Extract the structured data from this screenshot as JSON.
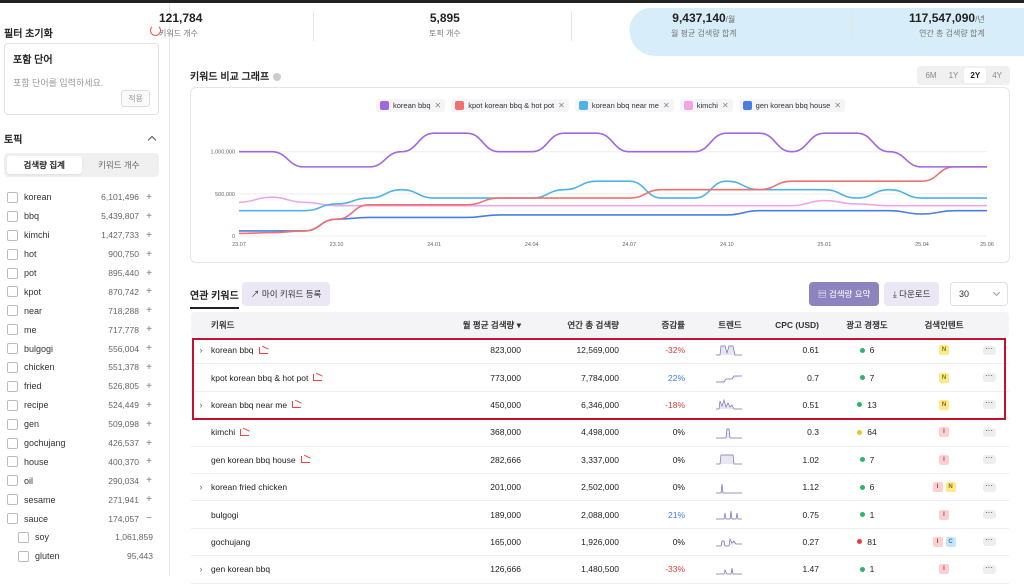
{
  "sidebar": {
    "title": "필터 초기화",
    "include": {
      "title": "포함 단어",
      "placeholder": "포함 단어를 입력하세요.",
      "apply": "적용"
    },
    "topic": {
      "title": "토픽",
      "tabs": [
        {
          "label": "검색량 집계",
          "active": true
        },
        {
          "label": "키워드 개수",
          "active": false
        }
      ],
      "items": [
        {
          "name": "korean",
          "value": "6,101,496",
          "action": "+"
        },
        {
          "name": "bbq",
          "value": "5,439,807",
          "action": "+"
        },
        {
          "name": "kimchi",
          "value": "1,427,733",
          "action": "+"
        },
        {
          "name": "hot",
          "value": "900,750",
          "action": "+"
        },
        {
          "name": "pot",
          "value": "895,440",
          "action": "+"
        },
        {
          "name": "kpot",
          "value": "870,742",
          "action": "+"
        },
        {
          "name": "near",
          "value": "718,288",
          "action": "+"
        },
        {
          "name": "me",
          "value": "717,778",
          "action": "+"
        },
        {
          "name": "bulgogi",
          "value": "556,004",
          "action": "+"
        },
        {
          "name": "chicken",
          "value": "551,378",
          "action": "+"
        },
        {
          "name": "fried",
          "value": "526,805",
          "action": "+"
        },
        {
          "name": "recipe",
          "value": "524,449",
          "action": "+"
        },
        {
          "name": "gen",
          "value": "509,098",
          "action": "+"
        },
        {
          "name": "gochujang",
          "value": "426,537",
          "action": "+"
        },
        {
          "name": "house",
          "value": "400,370",
          "action": "+"
        },
        {
          "name": "oil",
          "value": "290,034",
          "action": "+"
        },
        {
          "name": "sesame",
          "value": "271,941",
          "action": "+"
        },
        {
          "name": "sauce",
          "value": "174,057",
          "action": "−"
        }
      ],
      "subitems": [
        {
          "name": "soy",
          "value": "1,061,859"
        },
        {
          "name": "gluten",
          "value": "95,443"
        }
      ]
    }
  },
  "stats": [
    {
      "value": "121,784",
      "unit": "",
      "label": "키워드 개수"
    },
    {
      "value": "5,895",
      "unit": "",
      "label": "토픽 개수"
    },
    {
      "value": "9,437,140",
      "unit": "/월",
      "label": "월 평균 검색량 합계"
    },
    {
      "value": "117,547,090",
      "unit": "/년",
      "label": "연간 총 검색량 합계"
    }
  ],
  "graph": {
    "title": "키워드 비교 그래프",
    "periods": [
      {
        "label": "6M",
        "active": false
      },
      {
        "label": "1Y",
        "active": false
      },
      {
        "label": "2Y",
        "active": true
      },
      {
        "label": "4Y",
        "active": false
      }
    ]
  },
  "chart_data": {
    "type": "line",
    "x": [
      "23.07",
      "23.08",
      "23.09",
      "23.10",
      "23.11",
      "23.12",
      "24.01",
      "24.02",
      "24.03",
      "24.04",
      "24.05",
      "24.06",
      "24.07",
      "24.08",
      "24.09",
      "24.10",
      "24.11",
      "24.12",
      "25.01",
      "25.02",
      "25.03",
      "25.04",
      "25.05",
      "25.06"
    ],
    "xticks": [
      "23.07",
      "23.10",
      "24.01",
      "24.04",
      "24.07",
      "24.10",
      "25.01",
      "25.04",
      "25.06"
    ],
    "yticks": [
      "0",
      "500,000",
      "1,000,000"
    ],
    "ylim": [
      0,
      1400000
    ],
    "grid": true,
    "series": [
      {
        "name": "korean bbq",
        "color": "#a267e0",
        "values": [
          1000000,
          1000000,
          820000,
          820000,
          820000,
          1000000,
          1220000,
          1220000,
          1000000,
          1000000,
          1220000,
          1220000,
          1000000,
          1000000,
          1000000,
          1220000,
          1220000,
          1000000,
          1220000,
          1220000,
          1000000,
          820000,
          820000,
          820000
        ]
      },
      {
        "name": "kpot korean bbq & hot pot",
        "color": "#f07070",
        "values": [
          30000,
          40000,
          60000,
          200000,
          370000,
          370000,
          370000,
          370000,
          450000,
          450000,
          450000,
          450000,
          450000,
          550000,
          550000,
          550000,
          550000,
          650000,
          650000,
          650000,
          650000,
          650000,
          820000,
          820000
        ]
      },
      {
        "name": "korean bbq near me",
        "color": "#4fb3e8",
        "values": [
          300000,
          300000,
          300000,
          380000,
          450000,
          550000,
          450000,
          450000,
          450000,
          450000,
          550000,
          650000,
          650000,
          450000,
          450000,
          650000,
          550000,
          550000,
          550000,
          450000,
          550000,
          450000,
          450000,
          450000
        ]
      },
      {
        "name": "kimchi",
        "color": "#f0a5e6",
        "values": [
          400000,
          460000,
          400000,
          360000,
          360000,
          360000,
          360000,
          360000,
          360000,
          360000,
          360000,
          360000,
          360000,
          360000,
          360000,
          360000,
          360000,
          360000,
          420000,
          380000,
          360000,
          360000,
          360000,
          360000
        ]
      },
      {
        "name": "gen korean bbq house",
        "color": "#4a7fe0",
        "values": [
          60000,
          60000,
          60000,
          200000,
          220000,
          220000,
          220000,
          220000,
          250000,
          250000,
          250000,
          250000,
          250000,
          250000,
          250000,
          250000,
          300000,
          300000,
          300000,
          300000,
          300000,
          260000,
          300000,
          300000
        ]
      }
    ]
  },
  "related": {
    "title": "연관 키워드",
    "my_keyword_btn": "마이 키워드 등록",
    "summary_btn": "검색량 요약",
    "download_btn": "다운로드",
    "page_size": "30",
    "columns": [
      "키워드",
      "월 평균 검색량 ▾",
      "연간 총 검색량",
      "증감률",
      "트렌드",
      "CPC (USD)",
      "광고 경쟁도",
      "검색인텐트"
    ],
    "rows": [
      {
        "expand": "›",
        "keyword": "korean bbq",
        "monthly": "823,000",
        "yearly": "12,569,000",
        "change": "-32%",
        "dir": "neg",
        "cpc": "0.61",
        "comp": "6",
        "comp_color": "#2fb36e",
        "intents": [
          "N"
        ]
      },
      {
        "expand": "",
        "keyword": "kpot korean bbq & hot pot",
        "monthly": "773,000",
        "yearly": "7,784,000",
        "change": "22%",
        "dir": "pos",
        "cpc": "0.7",
        "comp": "7",
        "comp_color": "#2fb36e",
        "intents": [
          "N"
        ]
      },
      {
        "expand": "›",
        "keyword": "korean bbq near me",
        "monthly": "450,000",
        "yearly": "6,346,000",
        "change": "-18%",
        "dir": "neg",
        "cpc": "0.51",
        "comp": "13",
        "comp_color": "#2fb36e",
        "intents": [
          "N"
        ]
      },
      {
        "expand": "",
        "keyword": "kimchi",
        "monthly": "368,000",
        "yearly": "4,498,000",
        "change": "0%",
        "dir": "zero",
        "cpc": "0.3",
        "comp": "64",
        "comp_color": "#f0c030",
        "intents": [
          "I"
        ]
      },
      {
        "expand": "",
        "keyword": "gen korean bbq house",
        "monthly": "282,666",
        "yearly": "3,337,000",
        "change": "0%",
        "dir": "zero",
        "cpc": "1.02",
        "comp": "7",
        "comp_color": "#2fb36e",
        "intents": [
          "I"
        ]
      },
      {
        "expand": "›",
        "keyword": "korean fried chicken",
        "monthly": "201,000",
        "yearly": "2,502,000",
        "change": "0%",
        "dir": "zero",
        "cpc": "1.12",
        "comp": "6",
        "comp_color": "#2fb36e",
        "intents": [
          "I",
          "N"
        ]
      },
      {
        "expand": "",
        "keyword": "bulgogi",
        "monthly": "189,000",
        "yearly": "2,088,000",
        "change": "21%",
        "dir": "pos",
        "cpc": "0.75",
        "comp": "1",
        "comp_color": "#2fb36e",
        "intents": [
          "I"
        ]
      },
      {
        "expand": "",
        "keyword": "gochujang",
        "monthly": "165,000",
        "yearly": "1,926,000",
        "change": "0%",
        "dir": "zero",
        "cpc": "0.27",
        "comp": "81",
        "comp_color": "#e04040",
        "intents": [
          "I",
          "C"
        ]
      },
      {
        "expand": "›",
        "keyword": "gen korean bbq",
        "monthly": "126,666",
        "yearly": "1,480,500",
        "change": "-33%",
        "dir": "neg",
        "cpc": "1.47",
        "comp": "1",
        "comp_color": "#2fb36e",
        "intents": [
          "I"
        ]
      }
    ]
  }
}
